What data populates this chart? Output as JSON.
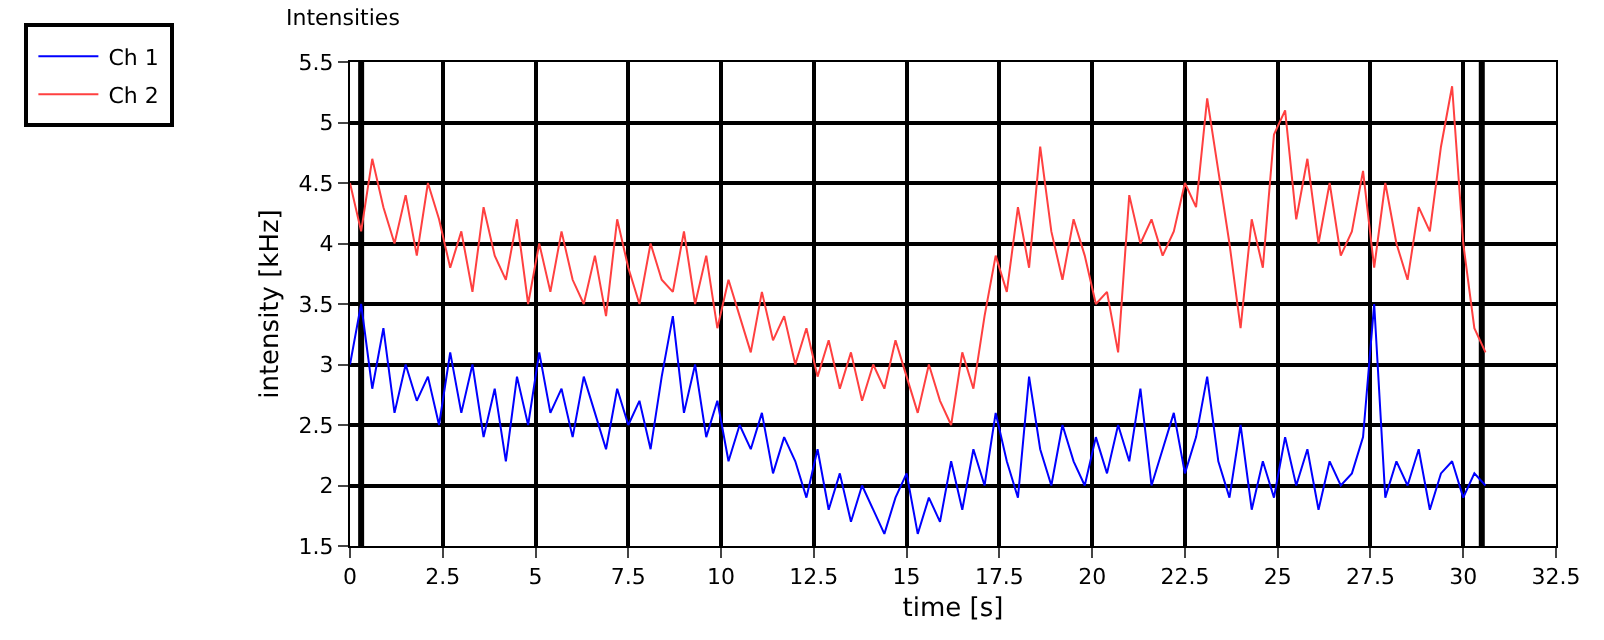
{
  "chart_data": {
    "type": "line",
    "title": "Intensities",
    "xlabel": "time [s]",
    "ylabel": "intensity [kHz]",
    "x": [
      0,
      0.3,
      0.6,
      0.9,
      1.2,
      1.5,
      1.8,
      2.1,
      2.4,
      2.7,
      3,
      3.3,
      3.6,
      3.9,
      4.2,
      4.5,
      4.8,
      5.1,
      5.4,
      5.7,
      6,
      6.3,
      6.6,
      6.9,
      7.2,
      7.5,
      7.8,
      8.1,
      8.4,
      8.7,
      9,
      9.3,
      9.6,
      9.9,
      10.2,
      10.5,
      10.8,
      11.1,
      11.4,
      11.7,
      12,
      12.3,
      12.6,
      12.9,
      13.2,
      13.5,
      13.8,
      14.1,
      14.4,
      14.7,
      15,
      15.3,
      15.6,
      15.9,
      16.2,
      16.5,
      16.8,
      17.1,
      17.4,
      17.7,
      18,
      18.3,
      18.6,
      18.9,
      19.2,
      19.5,
      19.8,
      20.1,
      20.4,
      20.7,
      21,
      21.3,
      21.6,
      21.9,
      22.2,
      22.5,
      22.8,
      23.1,
      23.4,
      23.7,
      24,
      24.3,
      24.6,
      24.9,
      25.2,
      25.5,
      25.8,
      26.1,
      26.4,
      26.7,
      27,
      27.3,
      27.6,
      27.9,
      28.2,
      28.5,
      28.8,
      29.1,
      29.4,
      29.7,
      30,
      30.3,
      30.6
    ],
    "series": [
      {
        "name": "Ch 1",
        "color": "#0000ff",
        "values": [
          3.0,
          3.5,
          2.8,
          3.3,
          2.6,
          3.0,
          2.7,
          2.9,
          2.5,
          3.1,
          2.6,
          3.0,
          2.4,
          2.8,
          2.2,
          2.9,
          2.5,
          3.1,
          2.6,
          2.8,
          2.4,
          2.9,
          2.6,
          2.3,
          2.8,
          2.5,
          2.7,
          2.3,
          2.9,
          3.4,
          2.6,
          3.0,
          2.4,
          2.7,
          2.2,
          2.5,
          2.3,
          2.6,
          2.1,
          2.4,
          2.2,
          1.9,
          2.3,
          1.8,
          2.1,
          1.7,
          2.0,
          1.8,
          1.6,
          1.9,
          2.1,
          1.6,
          1.9,
          1.7,
          2.2,
          1.8,
          2.3,
          2.0,
          2.6,
          2.2,
          1.9,
          2.9,
          2.3,
          2.0,
          2.5,
          2.2,
          2.0,
          2.4,
          2.1,
          2.5,
          2.2,
          2.8,
          2.0,
          2.3,
          2.6,
          2.1,
          2.4,
          2.9,
          2.2,
          1.9,
          2.5,
          1.8,
          2.2,
          1.9,
          2.4,
          2.0,
          2.3,
          1.8,
          2.2,
          2.0,
          2.1,
          2.4,
          3.5,
          1.9,
          2.2,
          2.0,
          2.3,
          1.8,
          2.1,
          2.2,
          1.9,
          2.1,
          2.0
        ]
      },
      {
        "name": "Ch 2",
        "color": "#ff4040",
        "values": [
          4.5,
          4.1,
          4.7,
          4.3,
          4.0,
          4.4,
          3.9,
          4.5,
          4.2,
          3.8,
          4.1,
          3.6,
          4.3,
          3.9,
          3.7,
          4.2,
          3.5,
          4.0,
          3.6,
          4.1,
          3.7,
          3.5,
          3.9,
          3.4,
          4.2,
          3.8,
          3.5,
          4.0,
          3.7,
          3.6,
          4.1,
          3.5,
          3.9,
          3.3,
          3.7,
          3.4,
          3.1,
          3.6,
          3.2,
          3.4,
          3.0,
          3.3,
          2.9,
          3.2,
          2.8,
          3.1,
          2.7,
          3.0,
          2.8,
          3.2,
          2.9,
          2.6,
          3.0,
          2.7,
          2.5,
          3.1,
          2.8,
          3.4,
          3.9,
          3.6,
          4.3,
          3.8,
          4.8,
          4.1,
          3.7,
          4.2,
          3.9,
          3.5,
          3.6,
          3.1,
          4.4,
          4.0,
          4.2,
          3.9,
          4.1,
          4.5,
          4.3,
          5.2,
          4.6,
          4.0,
          3.3,
          4.2,
          3.8,
          4.9,
          5.1,
          4.2,
          4.7,
          4.0,
          4.5,
          3.9,
          4.1,
          4.6,
          3.8,
          4.5,
          4.0,
          3.7,
          4.3,
          4.1,
          4.8,
          5.3,
          4.0,
          3.3,
          3.1
        ]
      }
    ],
    "xlim": [
      0,
      32.5
    ],
    "xticks": [
      0,
      2.5,
      5,
      7.5,
      10,
      12.5,
      15,
      17.5,
      20,
      22.5,
      25,
      27.5,
      30,
      32.5
    ],
    "ylim": [
      1.5,
      5.5
    ],
    "yticks": [
      1.5,
      2,
      2.5,
      3,
      3.5,
      4,
      4.5,
      5,
      5.5
    ],
    "ref_lines": [
      {
        "axis": "x",
        "value": 0.3,
        "label": null,
        "color": "#000000"
      },
      {
        "axis": "x",
        "value": 30.5,
        "label": null,
        "color": "#000000"
      }
    ],
    "grid": true,
    "legend": "top left",
    "marker": "none",
    "line_style": "solid"
  }
}
